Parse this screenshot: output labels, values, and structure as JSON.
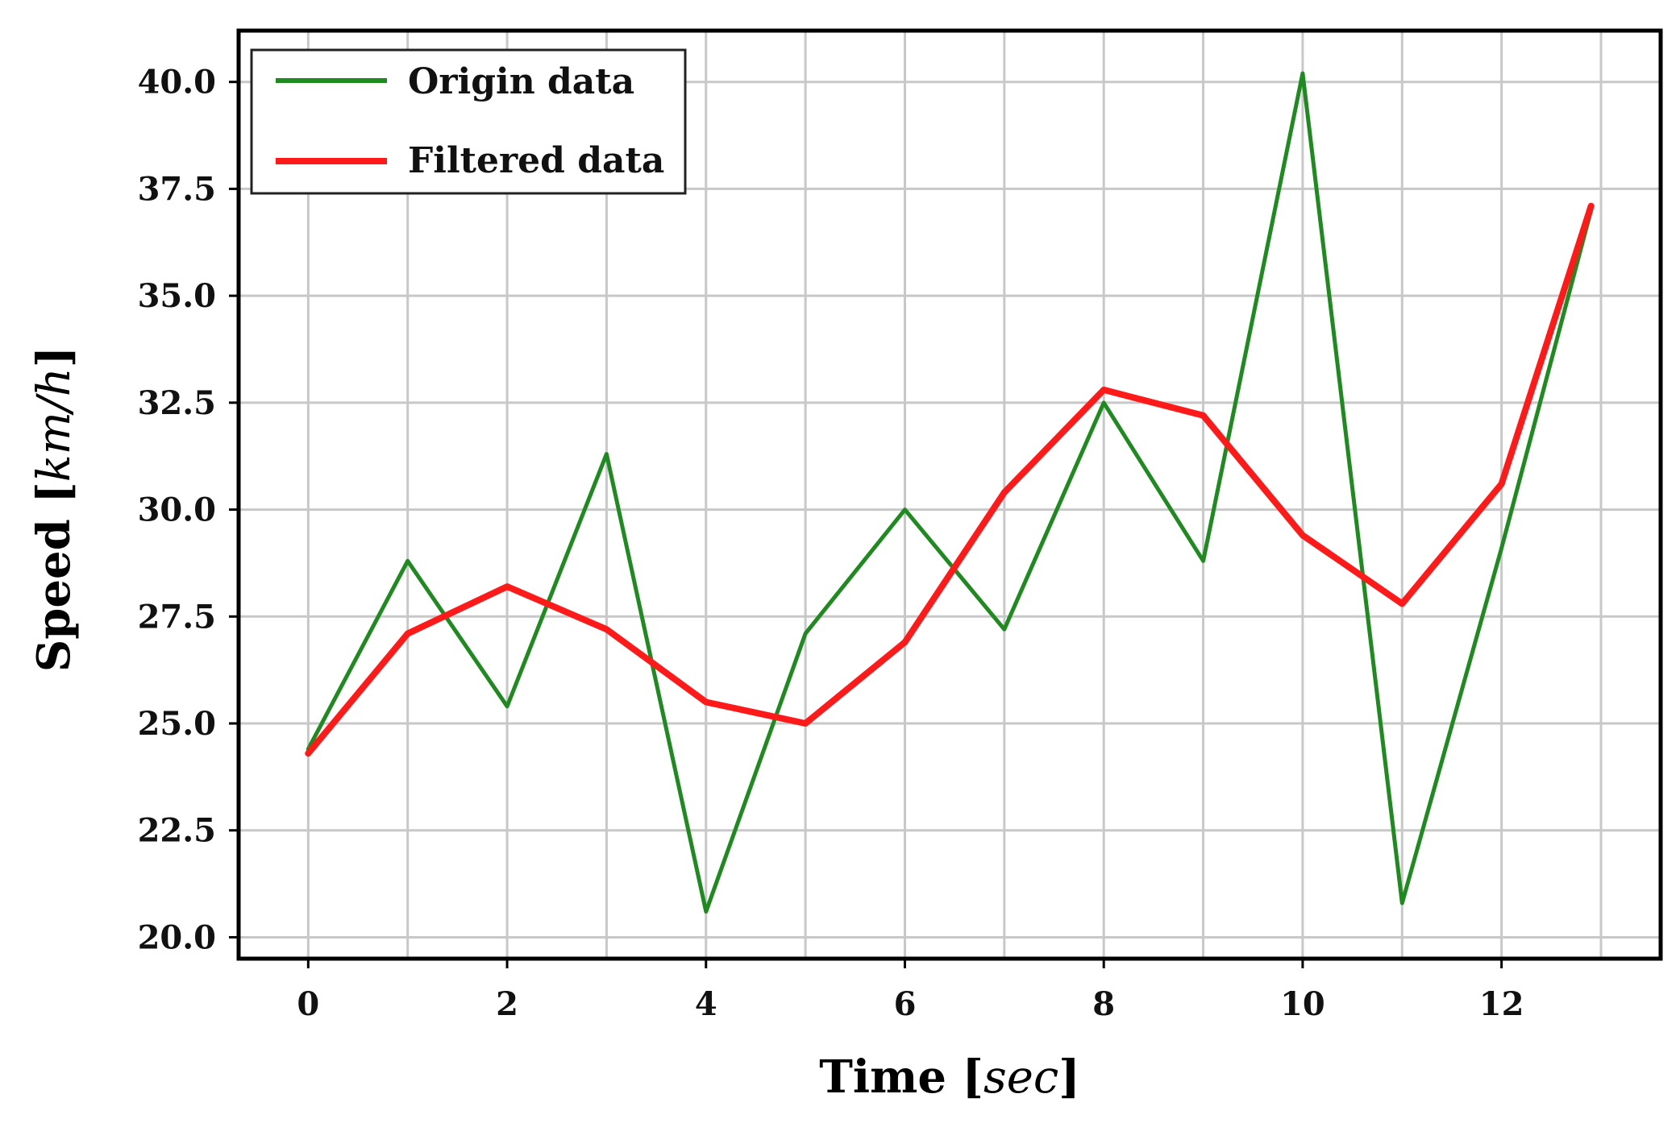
{
  "chart_data": {
    "type": "line",
    "title": "",
    "xlabel": {
      "prefix": "Time [",
      "unit": "sec",
      "suffix": "]"
    },
    "ylabel": {
      "prefix": "Speed [",
      "unit": "km/h",
      "suffix": "]"
    },
    "xlim": [
      -0.7,
      13.6
    ],
    "ylim": [
      19.5,
      41.2
    ],
    "xticks": [
      0,
      2,
      4,
      6,
      8,
      10,
      12
    ],
    "yticks": [
      20.0,
      22.5,
      25.0,
      27.5,
      30.0,
      32.5,
      35.0,
      37.5,
      40.0
    ],
    "grid": true,
    "legend_position": "top-left",
    "x": [
      0,
      1,
      2,
      3,
      4,
      5,
      6,
      7,
      8,
      9,
      10,
      11,
      12,
      12.9
    ],
    "series": [
      {
        "name": "Origin data",
        "color": "#1f8a1f",
        "values": [
          24.4,
          28.8,
          25.4,
          31.3,
          20.6,
          27.1,
          30.0,
          27.2,
          32.5,
          28.8,
          40.2,
          20.8,
          29.1,
          37.0
        ]
      },
      {
        "name": "Filtered data",
        "color": "#ff1a1a",
        "values": [
          24.3,
          27.1,
          28.2,
          27.2,
          25.5,
          25.0,
          26.9,
          30.4,
          32.8,
          32.2,
          29.4,
          27.8,
          30.6,
          37.1
        ]
      }
    ]
  }
}
